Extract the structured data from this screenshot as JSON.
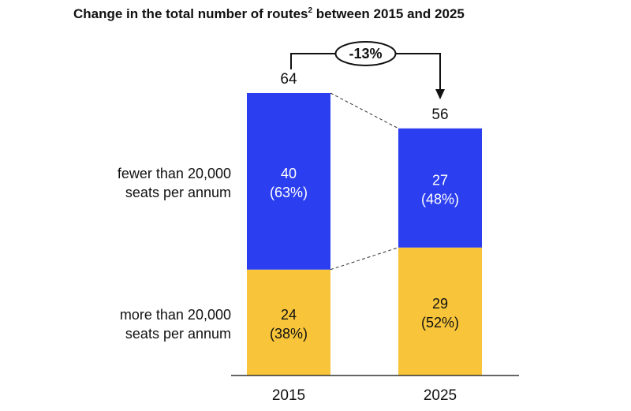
{
  "chart_data": {
    "type": "bar",
    "stacked": true,
    "title_main": "Change in the total number of routes",
    "title_sup": "2",
    "title_rest": " between 2015 and 2025",
    "categories": [
      "2015",
      "2025"
    ],
    "totals": [
      64,
      56
    ],
    "change_label": "-13%",
    "series": [
      {
        "name_line1": "more than 20,000",
        "name_line2": "seats per annum",
        "color": "#f8c53a",
        "text_color": "#111111",
        "values": [
          24,
          29
        ],
        "shares": [
          "(38%)",
          "(52%)"
        ]
      },
      {
        "name_line1": "fewer than 20,000",
        "name_line2": "seats per annum",
        "color": "#2c3ff0",
        "text_color": "#ffffff",
        "values": [
          40,
          27
        ],
        "shares": [
          "(63%)",
          "(48%)"
        ]
      }
    ],
    "grid": false
  }
}
